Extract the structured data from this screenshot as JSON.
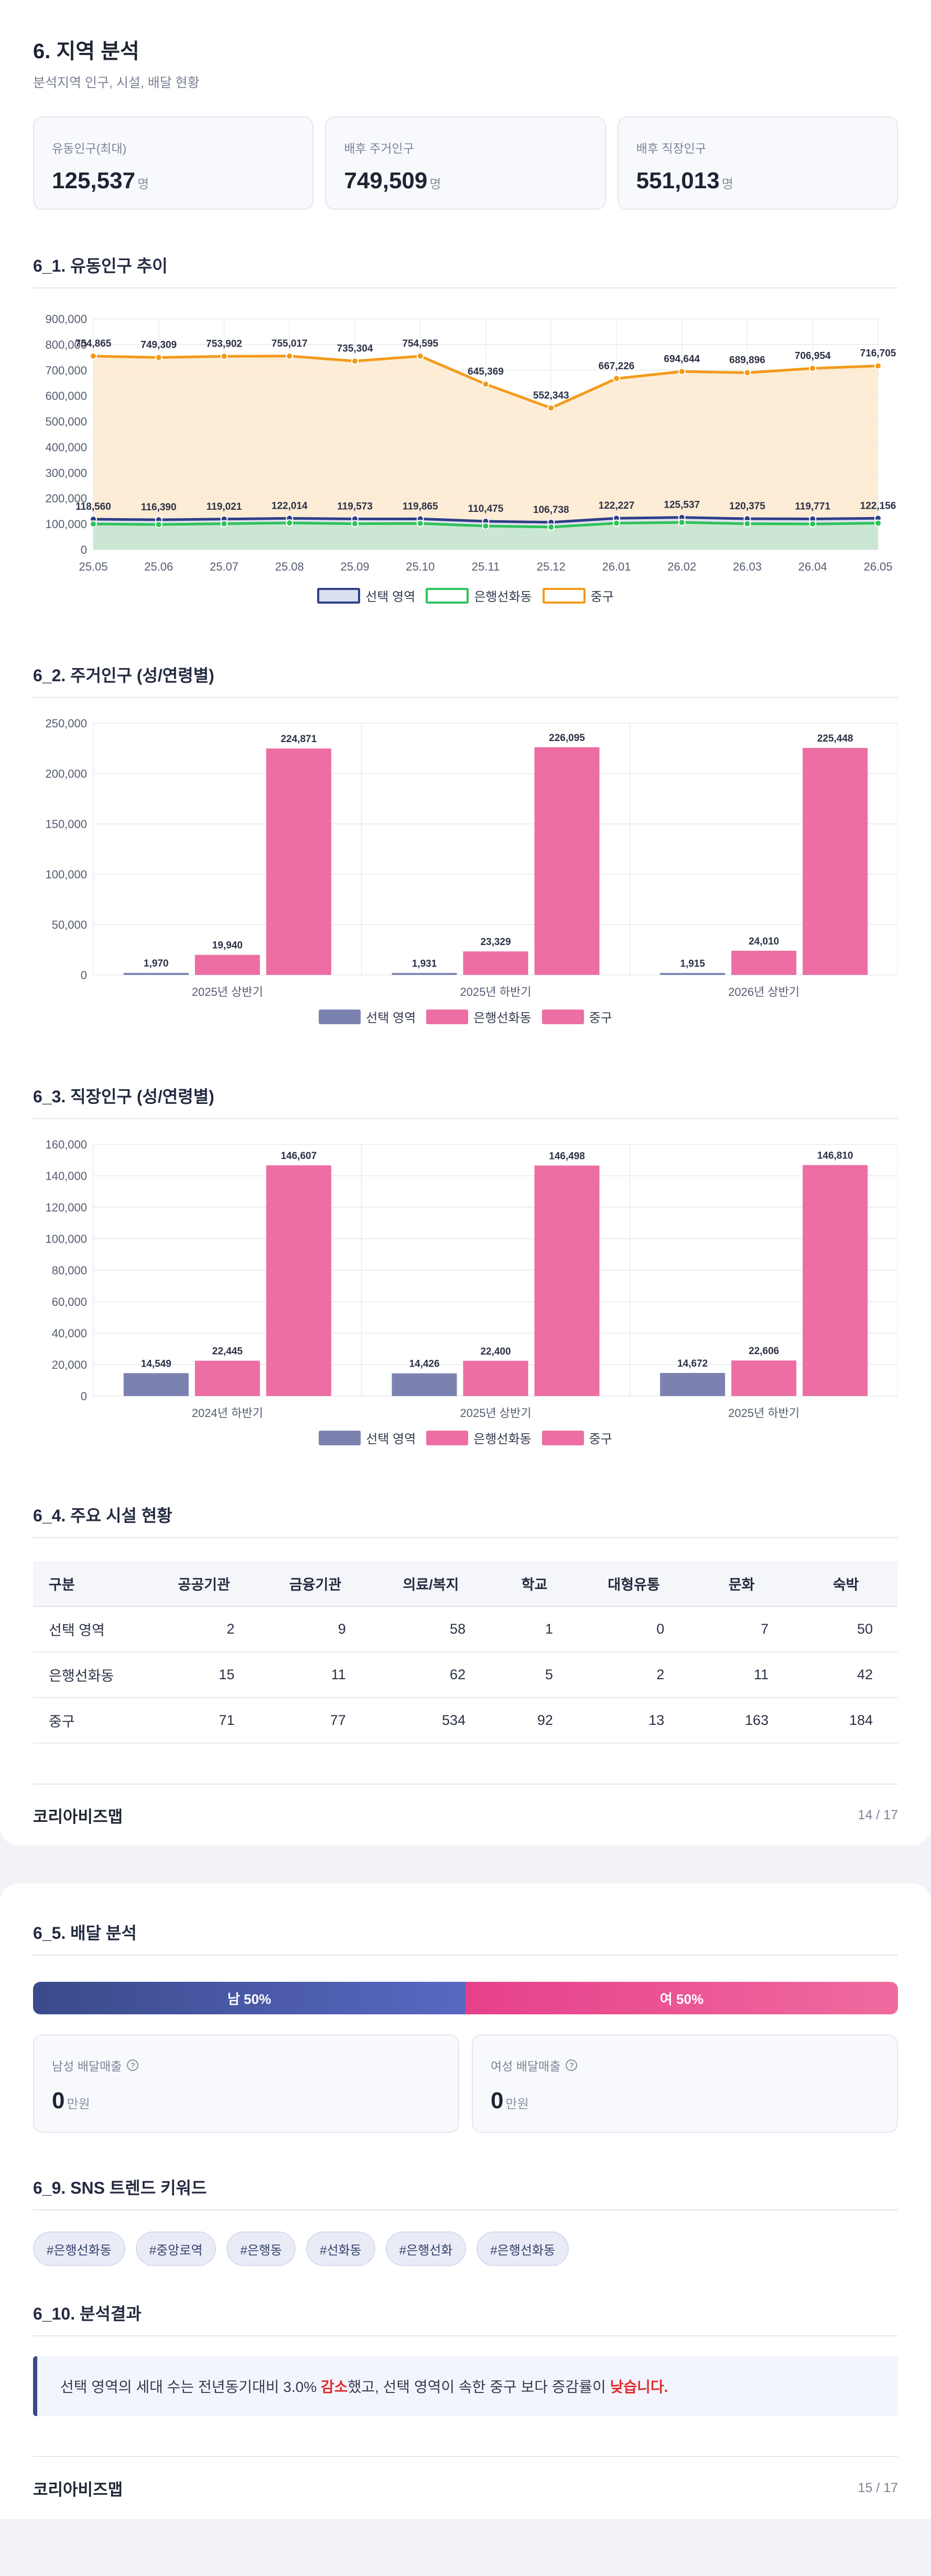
{
  "page1": {
    "title": "6. 지역 분석",
    "subtitle": "분석지역 인구, 시설, 배달 현황",
    "kpis": [
      {
        "label": "유동인구(최대)",
        "value": "125,537",
        "unit": "명"
      },
      {
        "label": "배후 주거인구",
        "value": "749,509",
        "unit": "명"
      },
      {
        "label": "배후 직장인구",
        "value": "551,013",
        "unit": "명"
      }
    ],
    "sections": {
      "s1": "6_1. 유동인구 추이",
      "s2": "6_2. 주거인구 (성/연령별)",
      "s3": "6_3. 직장인구 (성/연령별)",
      "s4": "6_4. 주요 시설 현황"
    },
    "facility_table": {
      "headers": [
        "구분",
        "공공기관",
        "금융기관",
        "의료/복지",
        "학교",
        "대형유통",
        "문화",
        "숙박"
      ],
      "rows": [
        [
          "선택 영역",
          "2",
          "9",
          "58",
          "1",
          "0",
          "7",
          "50"
        ],
        [
          "은행선화동",
          "15",
          "11",
          "62",
          "5",
          "2",
          "11",
          "42"
        ],
        [
          "중구",
          "71",
          "77",
          "534",
          "92",
          "13",
          "163",
          "184"
        ]
      ]
    },
    "footer": {
      "brand": "코리아비즈맵",
      "page": "14 / 17"
    }
  },
  "page2": {
    "sections": {
      "s5": "6_5. 배달 분석",
      "s9": "6_9. SNS 트렌드 키워드",
      "s10": "6_10. 분석결과"
    },
    "gender_bar": {
      "male": "남 50%",
      "female": "여 50%",
      "male_share": 0.5,
      "female_share": 0.5
    },
    "sales": [
      {
        "label": "남성 배달매출",
        "value": "0",
        "unit": "만원"
      },
      {
        "label": "여성 배달매출",
        "value": "0",
        "unit": "만원"
      }
    ],
    "tags": [
      "#은행선화동",
      "#중앙로역",
      "#은행동",
      "#선화동",
      "#은행선화",
      "#은행선화동"
    ],
    "result": {
      "pre": "선택 영역의 세대 수는 전년동기대비 3.0% ",
      "hl1": "감소",
      "mid": "했고, 선택 영역이 속한 중구 보다 증감률이 ",
      "hl2": "낮습니다."
    },
    "footer": {
      "brand": "코리아비즈맵",
      "page": "15 / 17"
    }
  },
  "chart_data": [
    {
      "type": "area",
      "categories": [
        "25.05",
        "25.06",
        "25.07",
        "25.08",
        "25.09",
        "25.10",
        "25.11",
        "25.12",
        "26.01",
        "26.02",
        "26.03",
        "26.04",
        "26.05"
      ],
      "ylim": [
        0,
        900000
      ],
      "yticks": [
        "0",
        "100,000",
        "200,000",
        "300,000",
        "400,000",
        "500,000",
        "600,000",
        "700,000",
        "800,000",
        "900,000"
      ],
      "series": [
        {
          "name": "선택 영역",
          "color": "#2f3f8a",
          "fill": "#d9def0",
          "values": [
            118560,
            116390,
            119021,
            122014,
            119573,
            119865,
            110475,
            106738,
            122227,
            125537,
            120375,
            119771,
            122156
          ],
          "labels": [
            "118,560",
            "116,390",
            "119,021",
            "122,014",
            "119,573",
            "119,865",
            "110,475",
            "106,738",
            "122,227",
            "125,537",
            "120,375",
            "119,771",
            "122,156"
          ]
        },
        {
          "name": "은행선화동",
          "color": "#2fc25b",
          "fill": "#c8e8cf",
          "values": [
            100000,
            98000,
            101000,
            104000,
            101000,
            102000,
            92000,
            88000,
            103000,
            106000,
            101000,
            100000,
            103000
          ],
          "labels": []
        },
        {
          "name": "중구",
          "color": "#f39a1a",
          "fill": "#fde9cf",
          "values": [
            754865,
            749309,
            753902,
            755017,
            735304,
            754595,
            645369,
            552343,
            667226,
            694644,
            689896,
            706954,
            716705
          ],
          "labels": [
            "754,865",
            "749,309",
            "753,902",
            "755,017",
            "735,304",
            "754,595",
            "645,369",
            "552,343",
            "667,226",
            "694,644",
            "689,896",
            "706,954",
            "716,705"
          ]
        }
      ]
    },
    {
      "type": "bar",
      "categories": [
        "2025년 상반기",
        "2025년 하반기",
        "2026년 상반기"
      ],
      "ylim": [
        0,
        250000
      ],
      "yticks": [
        "0",
        "50,000",
        "100,000",
        "150,000",
        "200,000",
        "250,000"
      ],
      "series": [
        {
          "name": "선택 영역",
          "color": "#7c82b0",
          "values": [
            1970,
            1931,
            1915
          ],
          "labels": [
            "1,970",
            "1,931",
            "1,915"
          ]
        },
        {
          "name": "은행선화동",
          "color": "#ec6ea2",
          "values": [
            19940,
            23329,
            24010
          ],
          "labels": [
            "19,940",
            "23,329",
            "24,010"
          ]
        },
        {
          "name": "중구",
          "color": "#ec6ea2",
          "values": [
            224871,
            226095,
            225448
          ],
          "labels": [
            "224,871",
            "226,095",
            "225,448"
          ]
        }
      ]
    },
    {
      "type": "bar",
      "categories": [
        "2024년 하반기",
        "2025년 상반기",
        "2025년 하반기"
      ],
      "ylim": [
        0,
        160000
      ],
      "yticks": [
        "0",
        "20,000",
        "40,000",
        "60,000",
        "80,000",
        "100,000",
        "120,000",
        "140,000",
        "160,000"
      ],
      "series": [
        {
          "name": "선택 영역",
          "color": "#7c82b0",
          "values": [
            14549,
            14426,
            14672
          ],
          "labels": [
            "14,549",
            "14,426",
            "14,672"
          ]
        },
        {
          "name": "은행선화동",
          "color": "#ec6ea2",
          "values": [
            22445,
            22400,
            22606
          ],
          "labels": [
            "22,445",
            "22,400",
            "22,606"
          ]
        },
        {
          "name": "중구",
          "color": "#ec6ea2",
          "values": [
            146607,
            146498,
            146810
          ],
          "labels": [
            "146,607",
            "146,498",
            "146,810"
          ]
        }
      ]
    }
  ]
}
